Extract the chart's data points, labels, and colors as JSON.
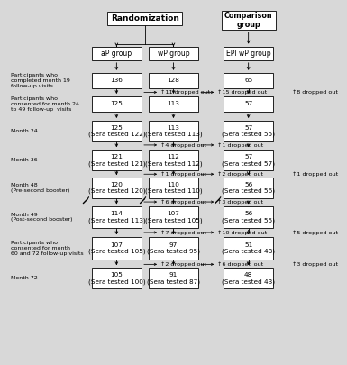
{
  "title_randomization": "Randomization",
  "title_comparison": "Comparison\ngroup",
  "groups": [
    "aP group",
    "wP group",
    "EPI wP group"
  ],
  "fig_bg": "#d8d8d8",
  "rows": [
    {
      "label": "Participants who\ncompleted month 19\nfollow-up visits",
      "values": [
        "136",
        "128",
        "65"
      ],
      "dropouts": [
        "↑11 dropped out",
        "↑15 dropped out",
        "↑8 dropped out"
      ],
      "small_box": true
    },
    {
      "label": "Participants who\nconsented for month 24\nto 49 follow-up  visits",
      "values": [
        "125",
        "113",
        "57"
      ],
      "dropouts": [
        null,
        null,
        null
      ],
      "small_box": true
    },
    {
      "label": "Month 24",
      "values": [
        "125\n(Sera tested 122)",
        "113\n(Sera tested 113)",
        "57\n(Sera tested 55)"
      ],
      "dropouts": [
        "↑4 dropped out",
        "↑1 dropped out",
        null
      ],
      "small_box": false
    },
    {
      "label": "Month 36",
      "values": [
        "121\n(Sera tested 121)",
        "112\n(Sera tested 112)",
        "57\n(Sera tested 57)"
      ],
      "dropouts": [
        "↑1 dropped out",
        "↑2 dropped out",
        "↑1 dropped out"
      ],
      "small_box": false
    },
    {
      "label": "Month 48\n(Pre-second booster)",
      "values": [
        "120\n(Sera tested 120)",
        "110\n(Sera tested 110)",
        "56\n(Sera tested 56)"
      ],
      "dropouts": [
        "↑6 dropped out",
        "↑3 dropped out",
        null
      ],
      "injection": [
        true,
        true,
        true
      ],
      "small_box": false
    },
    {
      "label": "Month 49\n(Post-second booster)",
      "values": [
        "114\n(Sera tested 113)",
        "107\n(Sera tested 105)",
        "56\n(Sera tested 55)"
      ],
      "dropouts": [
        "↑7 dropped out",
        "↑10 dropped out",
        "↑5 dropped out"
      ],
      "small_box": false
    },
    {
      "label": "Participants who\nconsented for month\n60 and 72 follow-up visits",
      "values": [
        "107\n(Sera tested 105)",
        "97\n(Sera tested 95)",
        "51\n(Sera tested 48)"
      ],
      "dropouts": [
        "↑2 dropped out",
        "↑6 dropped out",
        "↑3 dropped out"
      ],
      "small_box": false
    },
    {
      "label": "Month 72",
      "values": [
        "105\n(Sera tested 100)",
        "91\n(Sera tested 87)",
        "48\n(Sera tested 43)"
      ],
      "dropouts": [
        null,
        null,
        null
      ],
      "small_box": false
    }
  ]
}
